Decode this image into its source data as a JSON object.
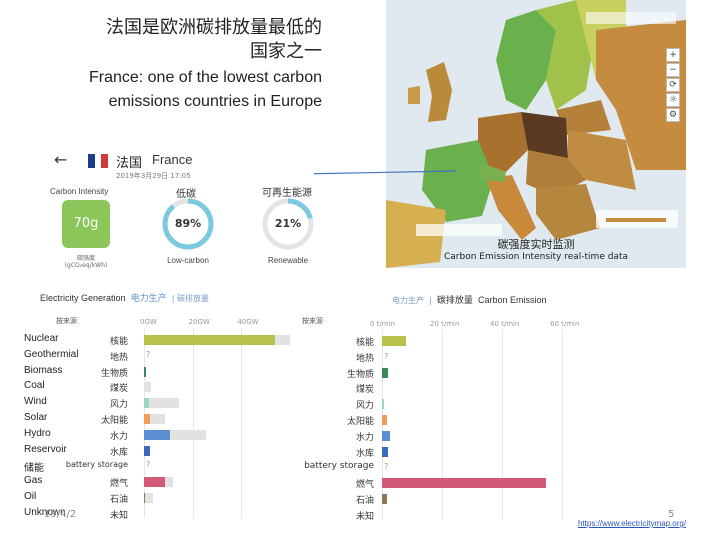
{
  "slide": {
    "title_cn_line1": "法国是欧洲碳排放量最低的",
    "title_cn_line2": "国家之一",
    "title_en_line1": "France: one of the lowest carbon",
    "title_en_line2": "emissions countries in Europe",
    "date": "19/4/2",
    "page_number": "5",
    "url": "https://www.electricitymap.org/"
  },
  "map": {
    "caption_cn": "碳强度实时监测",
    "caption_en": "Carbon Emission Intensity real-time data",
    "tools": [
      "+",
      "−",
      "⟳",
      "☼",
      "⚙"
    ]
  },
  "country": {
    "name_cn": "法国",
    "name_en": "France",
    "date": "2019年3月29日 17:05",
    "carbon_intensity_label": "Carbon Intensity",
    "carbon_intensity_value": "70g",
    "carbon_unit_line1": "碳强度",
    "carbon_unit_line2": "(gCO₂eq/kWh)",
    "low_carbon_label_cn": "低碳",
    "low_carbon_value": "89%",
    "low_carbon_fraction": 0.89,
    "low_carbon_label_en": "Low-carbon",
    "renewable_label_cn": "可再生能源",
    "renewable_value": "21%",
    "renewable_fraction": 0.21,
    "renewable_label_en": "Renewable"
  },
  "generation_panel": {
    "title_en": "Electricity Generation",
    "title_cn_active": "电力生产",
    "title_cn_other": "碳排放量",
    "sort_label": "按来源",
    "ticks": [
      "0GW",
      "20GW",
      "40GW"
    ],
    "max": 60,
    "rows": [
      {
        "en": "Nuclear",
        "cn": "核能",
        "value": 54,
        "capacity": 60,
        "color": "#b8c24a"
      },
      {
        "en": "Geothermial",
        "cn": "地热",
        "value": null,
        "capacity": 0,
        "color": "#cccccc"
      },
      {
        "en": "Biomass",
        "cn": "生物质",
        "value": 0.8,
        "capacity": 1.0,
        "color": "#3a8a5a"
      },
      {
        "en": "Coal",
        "cn": "煤炭",
        "value": 0,
        "capacity": 3,
        "color": "#777777"
      },
      {
        "en": "Wind",
        "cn": "风力",
        "value": 2,
        "capacity": 14.5,
        "color": "#9dd5c8"
      },
      {
        "en": "Solar",
        "cn": "太阳能",
        "value": 2.5,
        "capacity": 8.5,
        "color": "#f39b5b"
      },
      {
        "en": "Hydro",
        "cn": "水力",
        "value": 10.5,
        "capacity": 25.5,
        "color": "#5a8ed0"
      },
      {
        "en": "Reservoir",
        "cn": "水库",
        "value": 2.5,
        "capacity": 2.5,
        "color": "#3a6ab8"
      },
      {
        "en": "储能",
        "cn": "battery storage",
        "value": null,
        "capacity": 0,
        "color": "#cccccc"
      },
      {
        "en": "Gas",
        "cn": "燃气",
        "value": 8.5,
        "capacity": 12,
        "color": "#d05a78"
      },
      {
        "en": "Oil",
        "cn": "石油",
        "value": 0.3,
        "capacity": 3.5,
        "color": "#8a7a5a"
      },
      {
        "en": "Unknown",
        "cn": "未知",
        "value": 0,
        "capacity": 0,
        "color": "#cccccc"
      }
    ]
  },
  "emission_panel": {
    "title_cn_other": "电力生产",
    "title_cn_active": "碳排放量",
    "title_en": "Carbon Emission",
    "sort_label": "按来源",
    "ticks": [
      "0 t/min",
      "20 t/min",
      "40 t/min",
      "60 t/min"
    ],
    "max": 60,
    "rows": [
      {
        "cn": "核能",
        "value": 8,
        "color": "#b8c24a"
      },
      {
        "cn": "地热",
        "value": null,
        "color": "#cccccc"
      },
      {
        "cn": "生物质",
        "value": 2,
        "color": "#3a8a5a"
      },
      {
        "cn": "煤炭",
        "value": 0,
        "color": "#777777"
      },
      {
        "cn": "风力",
        "value": 0.3,
        "color": "#9dd5c8"
      },
      {
        "cn": "太阳能",
        "value": 1.5,
        "color": "#f39b5b"
      },
      {
        "cn": "水力",
        "value": 2.5,
        "color": "#5a8ed0"
      },
      {
        "cn": "水库",
        "value": 2,
        "color": "#3a6ab8"
      },
      {
        "cn": "battery storage",
        "value": null,
        "color": "#cccccc"
      },
      {
        "cn": "燃气",
        "value": 54.5,
        "color": "#d05a78"
      },
      {
        "cn": "石油",
        "value": 1.5,
        "color": "#8a7a5a"
      },
      {
        "cn": "未知",
        "value": 0,
        "color": "#cccccc"
      }
    ]
  }
}
